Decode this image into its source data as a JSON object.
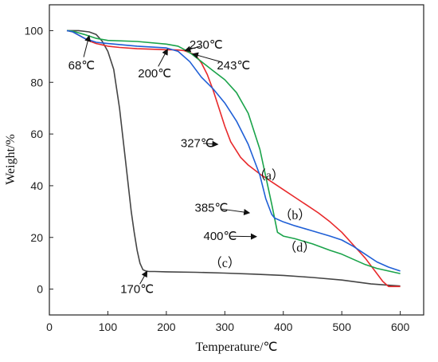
{
  "chart_data": {
    "type": "line",
    "xlabel": "Temperature/℃",
    "ylabel": "Weight/%",
    "xlim": [
      0,
      640
    ],
    "ylim": [
      -10,
      110
    ],
    "xticks": [
      0,
      100,
      200,
      300,
      400,
      500,
      600
    ],
    "yticks": [
      0,
      20,
      40,
      60,
      80,
      100
    ],
    "grid": false,
    "series": [
      {
        "name": "(a)",
        "color": "#e8292b",
        "x": [
          30,
          40,
          60,
          68,
          80,
          100,
          120,
          150,
          180,
          200,
          210,
          220,
          230,
          240,
          250,
          260,
          270,
          280,
          290,
          300,
          310,
          327,
          340,
          360,
          380,
          400,
          420,
          440,
          460,
          480,
          500,
          520,
          540,
          560,
          570,
          580,
          590,
          600
        ],
        "y": [
          100,
          99.5,
          97,
          96,
          95,
          94,
          93.5,
          93,
          92.8,
          92.6,
          92.6,
          92.5,
          92.3,
          91.5,
          90.5,
          87.5,
          83,
          77,
          70,
          63,
          57,
          51,
          48,
          44.5,
          41.5,
          38.5,
          35.5,
          32.5,
          29.5,
          26,
          22,
          17,
          12,
          6,
          3,
          1,
          1,
          1
        ]
      },
      {
        "name": "(b)",
        "color": "#1f5fd6",
        "x": [
          30,
          40,
          60,
          80,
          100,
          150,
          200,
          220,
          240,
          260,
          280,
          300,
          320,
          340,
          360,
          370,
          380,
          385,
          400,
          420,
          450,
          480,
          500,
          520,
          540,
          560,
          580,
          600
        ],
        "y": [
          100,
          99.5,
          97,
          95.5,
          95,
          94,
          93.3,
          92,
          88,
          82,
          77.5,
          72,
          65,
          56,
          44,
          35,
          29,
          27.5,
          26,
          24.5,
          22.5,
          20.5,
          19,
          16.5,
          13.5,
          10.5,
          8.5,
          7
        ]
      },
      {
        "name": "(c)",
        "color": "#444444",
        "x": [
          30,
          50,
          68,
          80,
          90,
          100,
          110,
          120,
          130,
          140,
          145,
          150,
          155,
          160,
          165,
          170,
          180,
          200,
          250,
          300,
          350,
          400,
          450,
          500,
          550,
          580,
          600
        ],
        "y": [
          100,
          100,
          99.5,
          98.5,
          96,
          92,
          85,
          70,
          50,
          30,
          22,
          15,
          10,
          7.5,
          7,
          6.8,
          6.8,
          6.7,
          6.5,
          6.2,
          5.8,
          5.3,
          4.5,
          3.5,
          2,
          1.5,
          1.2
        ]
      },
      {
        "name": "(d)",
        "color": "#1aa34a",
        "x": [
          30,
          40,
          60,
          80,
          100,
          150,
          200,
          220,
          230,
          243,
          260,
          280,
          300,
          320,
          340,
          360,
          380,
          390,
          400,
          420,
          450,
          480,
          500,
          520,
          540,
          560,
          580,
          600
        ],
        "y": [
          100,
          99.8,
          98.5,
          97,
          96.2,
          95.8,
          94.8,
          94,
          92.8,
          91,
          88,
          84.5,
          81,
          76,
          68,
          54,
          33,
          22,
          20.5,
          19.5,
          17.5,
          15,
          13.5,
          11.5,
          9.5,
          8,
          7,
          6
        ]
      }
    ],
    "annotations": [
      {
        "text": "68℃",
        "text_x": 55,
        "text_y": 85,
        "arrow_to_x": 68,
        "arrow_to_y": 98
      },
      {
        "text": "200℃",
        "text_x": 180,
        "text_y": 82,
        "arrow_to_x": 202,
        "arrow_to_y": 92.8
      },
      {
        "text": "230℃",
        "text_x": 268,
        "text_y": 93,
        "arrow_to_x": 232,
        "arrow_to_y": 92.3
      },
      {
        "text": "243℃",
        "text_x": 315,
        "text_y": 85,
        "arrow_to_x": 245,
        "arrow_to_y": 91
      },
      {
        "text": "327℃",
        "text_x": 253,
        "text_y": 55,
        "arrow_to_x": 288,
        "arrow_to_y": 56
      },
      {
        "text": "385℃",
        "text_x": 277,
        "text_y": 30,
        "arrow_to_x": 342,
        "arrow_to_y": 29.5
      },
      {
        "text": "400℃",
        "text_x": 292,
        "text_y": 19,
        "arrow_to_x": 354,
        "arrow_to_y": 20.3
      },
      {
        "text": "170℃",
        "text_x": 150,
        "text_y": -1.5,
        "arrow_to_x": 167,
        "arrow_to_y": 6.9
      }
    ],
    "series_labels": [
      {
        "text": "（a）",
        "x": 375,
        "y": 42.5
      },
      {
        "text": "（b）",
        "x": 420,
        "y": 27
      },
      {
        "text": "（c）",
        "x": 300,
        "y": 8.5
      },
      {
        "text": "（d）",
        "x": 428,
        "y": 14.5
      }
    ]
  }
}
